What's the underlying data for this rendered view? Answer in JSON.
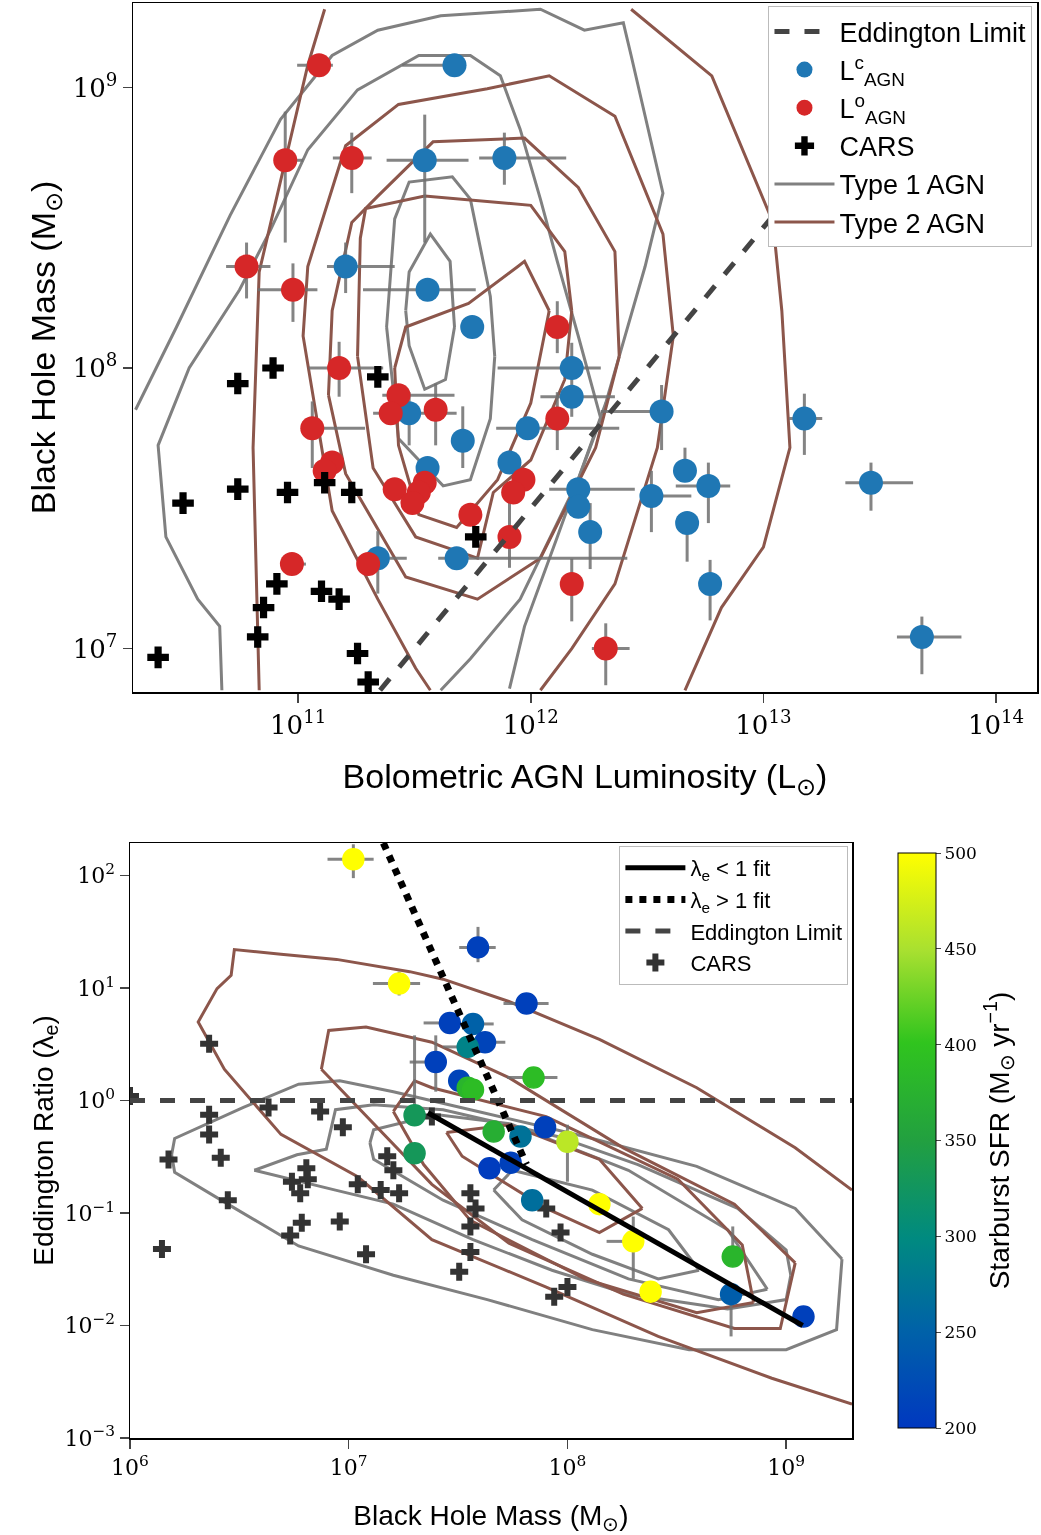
{
  "chart_data": [
    {
      "type": "scatter",
      "xlabel": "Bolometric AGN Luminosity (L$_{⊙}$)",
      "ylabel": "Black Hole Mass (M$_{⊙}$)",
      "log": "xy",
      "grid": false,
      "legend": "top right",
      "xlim": [
        19500000000.0,
        150000000000000.0
      ],
      "ylim": [
        7000000.0,
        2000000000.0
      ],
      "xticks": [
        {
          "value": 100000000000.0,
          "label": "10$^{11}$"
        },
        {
          "value": 1000000000000.0,
          "label": "10$^{12}$"
        },
        {
          "value": 10000000000000.0,
          "label": "10$^{13}$"
        },
        {
          "value": 100000000000000.0,
          "label": "10$^{14}$"
        }
      ],
      "yticks": [
        {
          "value": 10000000.0,
          "label": "10$^{7}$"
        },
        {
          "value": 100000000.0,
          "label": "10$^{8}$"
        },
        {
          "value": 1000000000.0,
          "label": "10$^{9}$"
        }
      ],
      "series": [
        {
          "name": "Eddington Limit",
          "type": "line",
          "color": "#444444",
          "line_style": "dashed",
          "marker": "none",
          "x": [
            225000000000.0,
            63000000000000.0
          ],
          "values": [
            7100000.0,
            2000000000.0
          ]
        },
        {
          "name": "L$^{c}$$_{AGN}$",
          "type": "scatter",
          "color": "#1f77b4",
          "marker": "circle",
          "x": [
            470000000000.0,
            350000000000.0,
            770000000000.0,
            160000000000.0,
            360000000000.0,
            560000000000.0,
            1500000000000.0,
            1500000000000.0,
            300000000000.0,
            3650000000000.0,
            360000000000.0,
            510000000000.0,
            970000000000.0,
            810000000000.0,
            1600000000000.0,
            1600000000000.0,
            1800000000000.0,
            3300000000000.0,
            4600000000000.0,
            5800000000000.0,
            4700000000000.0,
            15000000000000.0,
            29000000000000.0,
            5900000000000.0,
            48000000000000.0,
            480000000000.0,
            220000000000.0
          ],
          "values": [
            1200000000.0,
            550000000.0,
            560000000.0,
            230000000.0,
            190000000.0,
            140000000.0,
            100000000.0,
            79000000.0,
            69000000.0,
            70000000.0,
            44000000.0,
            55000000.0,
            61000000.0,
            46000000.0,
            37000000.0,
            32000000.0,
            26000000.0,
            35000000.0,
            43000000.0,
            38000000.0,
            28000000.0,
            66000000.0,
            39000000.0,
            17000000.0,
            11000000.0,
            21000000.0,
            21000000.0
          ],
          "xerrors": [
            [
              280000000000.0,
              470000000000.0
            ],
            [
              240000000000.0,
              540000000000.0
            ],
            [
              600000000000.0,
              1420000000000.0
            ],
            [
              133000000000.0,
              260000000000.0
            ],
            [
              190000000000.0,
              580000000000.0
            ],
            null,
            [
              720000000000.0,
              2000000000000.0
            ],
            [
              1100000000000.0,
              2300000000000.0
            ],
            [
              210000000000.0,
              480000000000.0
            ],
            [
              2000000000000.0,
              3650000000000.0
            ],
            null,
            null,
            [
              710000000000.0,
              2400000000000.0
            ],
            null,
            [
              1200000000000.0,
              2800000000000.0
            ],
            null,
            null,
            [
              3300000000000.0,
              4900000000000.0
            ],
            null,
            [
              4200000000000.0,
              7200000000000.0
            ],
            null,
            [
              12900000000000.0,
              17900000000000.0
            ],
            [
              22500000000000.0,
              44000000000000.0
            ],
            null,
            [
              37500000000000.0,
              71000000000000.0
            ],
            [
              400000000000.0,
              2600000000000.0
            ],
            [
              180000000000.0,
              293000000000.0
            ]
          ],
          "errors": [
            null,
            [
              280000000.0,
              800000000.0
            ],
            [
              450000000.0,
              690000000.0
            ],
            [
              185000000.0,
              280000000.0
            ],
            null,
            null,
            [
              100000000.0,
              123000000.0
            ],
            [
              67000000.0,
              93000000.0
            ],
            [
              53000000.0,
              82000000.0
            ],
            [
              51000000.0,
              87000000.0
            ],
            null,
            [
              44000000.0,
              73000000.0
            ],
            null,
            null,
            null,
            null,
            [
              19200000.0,
              33000000.0
            ],
            [
              26000000.0,
              43000000.0
            ],
            [
              43000000.0,
              52000000.0
            ],
            [
              28000000.0,
              46000000.0
            ],
            [
              20400000.0,
              28000000.0
            ],
            [
              49000000.0,
              81000000.0
            ],
            [
              31000000.0,
              46000000.0
            ],
            [
              12600000.0,
              20700000.0
            ],
            [
              8100000.0,
              13000000.0
            ],
            null,
            [
              15700000.0,
              26200000.0
            ]
          ]
        },
        {
          "name": "L$^{o}$$_{AGN}$",
          "type": "scatter",
          "color": "#d62728",
          "marker": "circle",
          "x": [
            123000000000.0,
            88000000000.0,
            170000000000.0,
            60000000000.0,
            95000000000.0,
            150000000000.0,
            115000000000.0,
            270000000000.0,
            250000000000.0,
            390000000000.0,
            140000000000.0,
            130000000000.0,
            260000000000.0,
            350000000000.0,
            330000000000.0,
            310000000000.0,
            550000000000.0,
            930000000000.0,
            840000000000.0,
            810000000000.0,
            1300000000000.0,
            1300000000000.0,
            94000000000.0,
            1500000000000.0,
            2100000000000.0,
            200000000000.0
          ],
          "values": [
            1200000000.0,
            550000000.0,
            560000000.0,
            230000000.0,
            190000000.0,
            100000000.0,
            61000000.0,
            80000000.0,
            69000000.0,
            71000000.0,
            46000000.0,
            43000000.0,
            37000000.0,
            39000000.0,
            36000000.0,
            33000000.0,
            30000000.0,
            40000000.0,
            36000000.0,
            25000000.0,
            140000000.0,
            66000000.0,
            20000000.0,
            17000000.0,
            10000000.0,
            20000000.0
          ],
          "xerrors": [
            [
              99000000000.0,
              141000000000.0
            ],
            [
              79000000000.0,
              105000000000.0
            ],
            [
              141000000000.0,
              207000000000.0
            ],
            [
              49000000000.0,
              76000000000.0
            ],
            [
              67000000000.0,
              121000000000.0
            ],
            [
              111000000000.0,
              232000000000.0
            ],
            [
              115000000000.0,
              194000000000.0
            ],
            [
              230000000000.0,
              470000000000.0
            ],
            null,
            null,
            null,
            null,
            null,
            null,
            null,
            null,
            null,
            null,
            null,
            null,
            null,
            null,
            [
              85000000000.0,
              108000000000.0
            ],
            null,
            [
              1830000000000.0,
              2660000000000.0
            ],
            null
          ],
          "errors": [
            null,
            [
              280000000.0,
              820000000.0
            ],
            [
              420000000.0,
              690000000.0
            ],
            [
              177000000.0,
              280000000.0
            ],
            [
              146000000.0,
              236000000.0
            ],
            [
              79000000.0,
              124000000.0
            ],
            [
              44000000.0,
              76000000.0
            ],
            null,
            null,
            [
              53000000.0,
              88000000.0
            ],
            null,
            null,
            null,
            null,
            null,
            null,
            null,
            null,
            null,
            [
              19400000.0,
              34000000.0
            ],
            [
              113000000.0,
              173000000.0
            ],
            [
              51000000.0,
              82000000.0
            ],
            null,
            [
              12500000.0,
              20900000.0
            ],
            [
              7400000.0,
              12300000.0
            ],
            null
          ]
        },
        {
          "name": "CARS",
          "type": "scatter",
          "color": "#000000",
          "marker": "cross",
          "x": [
            78000000000.0,
            55000000000.0,
            220000000000.0,
            55000000000.0,
            32000000000.0,
            90000000000.0,
            130000000000.0,
            170000000000.0,
            580000000000.0,
            81000000000.0,
            126000000000.0,
            150000000000.0,
            71000000000.0,
            67000000000.0,
            25000000000.0,
            180000000000.0,
            200000000000.0
          ],
          "values": [
            100000000.0,
            88000000.0,
            93000000.0,
            37000000.0,
            33000000.0,
            36000000.0,
            39000000.0,
            36000000.0,
            25000000.0,
            17000000.0,
            16000000.0,
            15000000.0,
            14000000.0,
            11000000.0,
            9300000.0,
            9600000.0,
            7600000.0
          ]
        },
        {
          "name": "Type 1 AGN",
          "type": "line",
          "color": "#808080",
          "line_style": "solid",
          "marker": "none",
          "x": [
            20000000000.0,
            30000000000.0,
            51000000000.0,
            84000000000.0,
            140000000000.0,
            220000000000.0,
            410000000000.0,
            1100000000000.0,
            1700000000000.0,
            2500000000000.0,
            2700000000000.0,
            3700000000000.0,
            3100000000000.0,
            2100000000000.0,
            1300000000000.0,
            940000000000.0,
            810000000000.0
          ],
          "values": [
            71000000.0,
            140000000.0,
            350000000.0,
            770000000.0,
            1300000000.0,
            1600000000.0,
            1800000000.0,
            1900000000.0,
            1600000000.0,
            1700000000.0,
            1300000000.0,
            420000000.0,
            230000000.0,
            75000000.0,
            25000000.0,
            12000000.0,
            7200000.0
          ]
        },
        {
          "type": "line",
          "color": "#808080",
          "line_style": "solid",
          "marker": "none",
          "x": [
            47000000000.0,
            46000000000.0,
            37000000000.0,
            27000000000.0,
            25000000000.0,
            34000000000.0,
            56000000000.0,
            76000000000.0,
            110000000000.0,
            180000000000.0,
            330000000000.0,
            550000000000.0,
            740000000000.0,
            900000000000.0,
            1100000000000.0,
            1300000000000.0,
            1600000000000.0,
            2000000000000.0,
            1600000000000.0,
            900000000000.0,
            550000000000.0,
            410000000000.0
          ],
          "values": [
            7100000.0,
            12000000.0,
            15000000.0,
            25000000.0,
            53000000.0,
            100000000.0,
            190000000.0,
            310000000.0,
            600000000.0,
            980000000.0,
            1300000000.0,
            1300000000.0,
            1100000000.0,
            710000000.0,
            400000000.0,
            240000000.0,
            130000000.0,
            66000000.0,
            40000000.0,
            15000000.0,
            9200000.0,
            7100000.0
          ]
        },
        {
          "type": "line",
          "color": "#808080",
          "line_style": "solid",
          "marker": "none",
          "x": [
            240000000000.0,
            260000000000.0,
            300000000000.0,
            460000000000.0,
            550000000000.0,
            670000000000.0,
            700000000000.0,
            null,
            240000000000.0,
            270000000000.0,
            420000000000.0,
            550000000000.0,
            670000000000.0,
            700000000000.0
          ],
          "values": [
            140000000.0,
            340000000.0,
            460000000.0,
            480000000.0,
            400000000.0,
            180000000.0,
            110000000.0,
            null,
            140000000.0,
            56000000.0,
            38000000.0,
            40000000.0,
            66000000.0,
            110000000.0
          ]
        },
        {
          "type": "line",
          "color": "#808080",
          "line_style": "solid",
          "marker": "none",
          "x": [
            290000000000.0,
            300000000000.0,
            370000000000.0,
            450000000000.0,
            470000000000.0,
            null,
            290000000000.0,
            300000000000.0,
            350000000000.0,
            430000000000.0,
            470000000000.0
          ],
          "values": [
            160000000.0,
            220000000.0,
            300000000.0,
            240000000.0,
            140000000.0,
            null,
            160000000.0,
            120000000.0,
            84000000.0,
            91000000.0,
            140000000.0
          ]
        },
        {
          "name": "Type 2 AGN",
          "type": "line",
          "color": "#8c564b",
          "line_style": "solid",
          "marker": "none",
          "x": [
            135000000000.0,
            140000000000.0,
            170000000000.0,
            220000000000.0,
            380000000000.0,
            940000000000.0,
            1600000000000.0,
            2300000000000.0,
            2400000000000.0,
            null,
            135000000000.0,
            160000000000.0,
            290000000000.0,
            590000000000.0,
            1100000000000.0,
            1900000000000.0,
            2400000000000.0
          ],
          "values": [
            80000000.0,
            160000000.0,
            330000000.0,
            410000000.0,
            640000000.0,
            660000000.0,
            440000000.0,
            260000000.0,
            110000000.0,
            null,
            80000000.0,
            42000000.0,
            18000000.0,
            15000000.0,
            21000000.0,
            52000000.0,
            110000000.0
          ]
        },
        {
          "type": "line",
          "color": "#8c564b",
          "line_style": "solid",
          "marker": "none",
          "x": [
            130000000000.0,
            110000000000.0,
            68000000000.0,
            64000000000.0,
            68000000000.0,
            null,
            2700000000000.0,
            6000000000000.0,
            11000000000000.0,
            12000000000000.0,
            13000000000000.0,
            10000000000000.0,
            6600000000000.0,
            4600000000000.0
          ],
          "values": [
            1900000000.0,
            1200000000.0,
            220000000.0,
            52000000.0,
            7100000.0,
            null,
            1900000000.0,
            1100000000.0,
            330000000.0,
            160000000.0,
            52000000.0,
            23000000.0,
            14000000.0,
            7100000.0
          ]
        },
        {
          "type": "line",
          "color": "#8c564b",
          "line_style": "solid",
          "marker": "none",
          "x": [
            370000000000.0,
            320000000000.0,
            220000000000.0,
            140000000000.0,
            105000000000.0,
            110000000000.0,
            160000000000.0,
            270000000000.0,
            650000000000.0,
            1200000000000.0,
            2300000000000.0,
            3700000000000.0,
            4100000000000.0,
            3500000000000.0,
            2300000000000.0,
            1500000000000.0,
            1100000000000.0
          ],
          "values": [
            7100000.0,
            8500000.0,
            15000000.0,
            31000000.0,
            130000000.0,
            230000000.0,
            620000000.0,
            870000000.0,
            990000000.0,
            1100000000.0,
            790000000.0,
            300000000.0,
            130000000.0,
            52000000.0,
            17000000.0,
            10000000.0,
            7100000.0
          ]
        },
        {
          "type": "line",
          "color": "#8c564b",
          "line_style": "solid",
          "marker": "none",
          "x": [
            180000000000.0,
            185000000000.0,
            195000000000.0,
            350000000000.0,
            1000000000000.0,
            1400000000000.0,
            1500000000000.0,
            null,
            180000000000.0,
            210000000000.0,
            320000000000.0,
            590000000000.0,
            690000000000.0,
            1000000000000.0,
            1400000000000.0,
            1500000000000.0
          ],
          "values": [
            110000000.0,
            290000000.0,
            370000000.0,
            410000000.0,
            380000000.0,
            260000000.0,
            160000000.0,
            null,
            110000000.0,
            44000000.0,
            25000000.0,
            21000000.0,
            36000000.0,
            47000000.0,
            91000000.0,
            160000000.0
          ]
        },
        {
          "type": "line",
          "color": "#8c564b",
          "line_style": "solid",
          "marker": "none",
          "x": [
            260000000000.0,
            290000000000.0,
            540000000000.0,
            880000000000.0,
            940000000000.0,
            1200000000000.0,
            null,
            260000000000.0,
            270000000000.0,
            330000000000.0,
            480000000000.0,
            720000000000.0,
            1000000000000.0,
            1200000000000.0
          ],
          "values": [
            100000000.0,
            140000000.0,
            170000000.0,
            230000000.0,
            240000000.0,
            160000000.0,
            null,
            100000000.0,
            53000000.0,
            30000000.0,
            27000000.0,
            40000000.0,
            75000000.0,
            160000000.0
          ]
        }
      ]
    },
    {
      "type": "scatter",
      "xlabel": "Black Hole Mass (M$_{⊙}$)",
      "ylabel": "Eddington Ratio (λ$_{e}$)",
      "clabel": "Starburst SFR (M$_{⊙}$ yr$^{−1}$)",
      "log": "xy",
      "grid": false,
      "legend": "top right",
      "xlim": [
        1000000.0,
        2000000000.0
      ],
      "ylim": [
        0.001,
        195
      ],
      "xticks": [
        {
          "value": 1000000.0,
          "label": "10$^{6}$"
        },
        {
          "value": 10000000.0,
          "label": "10$^{7}$"
        },
        {
          "value": 100000000.0,
          "label": "10$^{8}$"
        },
        {
          "value": 1000000000.0,
          "label": "10$^{9}$"
        }
      ],
      "yticks": [
        {
          "value": 0.001,
          "label": "10$^{−3}$"
        },
        {
          "value": 0.01,
          "label": "10$^{−2}$"
        },
        {
          "value": 0.1,
          "label": "10$^{−1}$"
        },
        {
          "value": 1,
          "label": "10$^{0}$"
        },
        {
          "value": 10,
          "label": "10$^{1}$"
        },
        {
          "value": 100,
          "label": "10$^{2}$"
        }
      ],
      "clim": [
        200,
        500
      ],
      "cticks": [
        200,
        250,
        300,
        350,
        400,
        450,
        500
      ],
      "series": [
        {
          "name": "λ$_{e}$ < 1 fit",
          "type": "line",
          "color": "#000000",
          "line_style": "solid",
          "marker": "none",
          "x": [
            23000000.0,
            1190000000.0
          ],
          "values": [
            0.78,
            0.01
          ]
        },
        {
          "name": "λ$_{e}$ > 1 fit",
          "type": "line",
          "color": "#000000",
          "line_style": "dotted",
          "marker": "none",
          "x": [
            14400000.0,
            65000000.0
          ],
          "values": [
            195,
            0.27
          ]
        },
        {
          "name": "Eddington Limit",
          "type": "line",
          "color": "#444444",
          "line_style": "dashed",
          "marker": "none",
          "x": [
            1000000.0,
            2000000000.0
          ],
          "values": [
            1,
            1
          ]
        },
        {
          "name": "CARS",
          "type": "scatter",
          "color": "#333333",
          "marker": "cross",
          "x": [
            2300000.0,
            1000000.0,
            2300000.0,
            2300000.0,
            1500000.0,
            2600000.0,
            2800000.0,
            1400000.0,
            4300000.0,
            7400000.0,
            9400000.0,
            6400000.0,
            6500000.0,
            5500000.0,
            6000000.0,
            6100000.0,
            5400000.0,
            9100000.0,
            12000000.0,
            11000000.0,
            14000000.0,
            17000000.0,
            15000000.0,
            16000000.0,
            24000000.0,
            36000000.0,
            38000000.0,
            36000000.0,
            36000000.0,
            32000000.0,
            93000000.0,
            80000000.0,
            100000000.0,
            87000000.0
          ],
          "values": [
            3.2,
            1.1,
            0.75,
            0.5,
            0.3,
            0.31,
            0.13,
            0.048,
            0.87,
            0.8,
            0.58,
            0.25,
            0.2,
            0.19,
            0.15,
            0.082,
            0.063,
            0.084,
            0.043,
            0.18,
            0.16,
            0.15,
            0.32,
            0.24,
            0.72,
            0.15,
            0.11,
            0.076,
            0.045,
            0.03,
            0.067,
            0.11,
            0.022,
            0.018
          ]
        },
        {
          "type": "line",
          "color": "#808080",
          "line_style": "solid",
          "marker": "none",
          "x": [
            1550000.0,
            1600000.0,
            3300000.0,
            5900000.0,
            9100000.0,
            16000000.0,
            36000000.0,
            120000000.0,
            390000000.0,
            1100000000.0,
            1800000000.0,
            null,
            1550000.0,
            1600000.0,
            2800000.0,
            5900000.0,
            16000000.0,
            43000000.0,
            130000000.0,
            360000000.0,
            1000000000.0,
            1700000000.0,
            1800000000.0
          ],
          "values": [
            0.33,
            0.46,
            0.87,
            1.4,
            1.5,
            1.2,
            0.83,
            0.48,
            0.26,
            0.11,
            0.039,
            null,
            0.33,
            0.23,
            0.12,
            0.051,
            0.028,
            0.017,
            0.0092,
            0.0061,
            0.0061,
            0.0092,
            0.039
          ]
        },
        {
          "type": "line",
          "color": "#808080",
          "line_style": "solid",
          "marker": "none",
          "x": [
            3700000.0,
            5800000.0,
            7900000.0,
            8700000.0,
            13000000.0,
            27000000.0,
            90000000.0,
            210000000.0,
            600000000.0,
            1000000000.0,
            1050000000.0,
            null,
            3700000.0,
            8700000.0,
            16000000.0,
            37000000.0,
            85000000.0,
            190000000.0,
            540000000.0,
            1000000000.0,
            1050000000.0
          ],
          "values": [
            0.24,
            0.33,
            0.37,
            0.83,
            0.92,
            0.83,
            0.48,
            0.27,
            0.11,
            0.047,
            0.028,
            null,
            0.24,
            0.16,
            0.12,
            0.058,
            0.031,
            0.019,
            0.014,
            0.017,
            0.028
          ]
        },
        {
          "type": "line",
          "color": "#808080",
          "line_style": "solid",
          "marker": "none",
          "x": [
            12500000.0,
            13000000.0,
            25000000.0,
            55000000.0,
            190000000.0,
            540000000.0,
            820000000.0,
            null,
            12500000.0,
            13000000.0,
            27000000.0,
            69000000.0,
            190000000.0,
            490000000.0,
            820000000.0
          ],
          "values": [
            0.42,
            0.55,
            0.75,
            0.62,
            0.24,
            0.071,
            0.021,
            null,
            0.42,
            0.3,
            0.13,
            0.058,
            0.026,
            0.017,
            0.021
          ]
        },
        {
          "type": "line",
          "color": "#808080",
          "line_style": "solid",
          "marker": "none",
          "x": [
            46000000.0,
            56000000.0,
            130000000.0,
            290000000.0,
            400000000.0,
            null,
            46000000.0,
            62000000.0,
            130000000.0,
            260000000.0,
            400000000.0
          ],
          "values": [
            0.16,
            0.24,
            0.16,
            0.071,
            0.031,
            null,
            0.16,
            0.087,
            0.043,
            0.026,
            0.031
          ]
        },
        {
          "type": "line",
          "color": "#8c564b",
          "line_style": "solid",
          "marker": "none",
          "x": [
            2000000000.0,
            1100000000.0,
            390000000.0,
            140000000.0,
            54000000.0,
            27000000.0,
            19000000.0,
            8800000.0,
            4900000.0,
            3000000.0,
            2900000.0,
            2500000.0,
            2050000.0,
            2700000.0,
            4900000.0,
            11000000.0,
            24000000.0,
            80000000.0,
            260000000.0,
            860000000.0,
            2000000000.0
          ],
          "values": [
            0.16,
            0.38,
            1.3,
            3.5,
            7.6,
            12,
            14,
            18,
            20,
            22,
            13,
            9.9,
            5.0,
            1.9,
            0.5,
            0.21,
            0.058,
            0.022,
            0.008,
            0.0034,
            0.002
          ]
        },
        {
          "type": "line",
          "color": "#8c564b",
          "line_style": "solid",
          "marker": "none",
          "x": [
            7500000.0,
            8100000.0,
            12000000.0,
            24000000.0,
            54000000.0,
            180000000.0,
            580000000.0,
            1100000000.0,
            null,
            7500000.0,
            24000000.0,
            54000000.0,
            180000000.0,
            580000000.0,
            940000000.0,
            1100000000.0
          ],
          "values": [
            1.9,
            4.2,
            4.5,
            3.3,
            1.6,
            0.38,
            0.12,
            0.036,
            null,
            1.9,
            0.18,
            0.054,
            0.019,
            0.0094,
            0.0094,
            0.036
          ]
        },
        {
          "type": "line",
          "color": "#8c564b",
          "line_style": "solid",
          "marker": "none",
          "x": [
            16000000.0,
            20000000.0,
            24000000.0,
            80000000.0,
            320000000.0,
            630000000.0,
            710000000.0,
            null,
            16000000.0,
            22000000.0,
            36000000.0,
            120000000.0,
            390000000.0,
            710000000.0
          ],
          "values": [
            0.8,
            1.5,
            1.3,
            0.72,
            0.2,
            0.052,
            0.016,
            null,
            0.8,
            0.27,
            0.086,
            0.026,
            0.013,
            0.016
          ]
        },
        {
          "type": "line",
          "color": "#8c564b",
          "line_style": "solid",
          "marker": "none",
          "x": [
            28000000.0,
            54000000.0,
            140000000.0,
            220000000.0,
            null,
            28000000.0,
            33000000.0,
            80000000.0,
            140000000.0,
            220000000.0
          ],
          "values": [
            0.52,
            0.61,
            0.3,
            0.11,
            null,
            0.52,
            0.32,
            0.11,
            0.067,
            0.11
          ]
        },
        {
          "type": "scatter",
          "marker": "circle",
          "x": [
            10500000.0,
            17000000.0,
            39000000.0,
            65000000.0,
            29000000.0,
            37000000.0,
            42000000.0,
            35000000.0,
            25000000.0,
            32000000.0,
            35000000.0,
            37000000.0,
            70000000.0,
            20000000.0,
            20000000.0,
            46000000.0,
            61000000.0,
            79000000.0,
            100000000.0,
            44000000.0,
            55000000.0,
            69000000.0,
            140000000.0,
            200000000.0,
            570000000.0,
            240000000.0,
            560000000.0,
            1200000000.0
          ],
          "values": [
            140,
            11,
            23,
            7.3,
            4.9,
            4.8,
            3.3,
            3.0,
            2.2,
            1.5,
            1.3,
            1.25,
            1.6,
            0.74,
            0.34,
            0.53,
            0.48,
            0.58,
            0.43,
            0.25,
            0.28,
            0.13,
            0.12,
            0.056,
            0.041,
            0.02,
            0.019,
            0.012
          ],
          "cvalues": [
            500,
            500,
            210,
            210,
            210,
            250,
            215,
            290,
            210,
            215,
            380,
            390,
            390,
            330,
            330,
            370,
            270,
            210,
            460,
            205,
            210,
            265,
            500,
            500,
            380,
            500,
            245,
            210
          ],
          "colors": [
            "#ffff00",
            "#ffff00",
            "#0040bb",
            "#0040bb",
            "#0040bb",
            "#0061a8",
            "#0044b9",
            "#008288",
            "#0040bb",
            "#0044b9",
            "#2ab52c",
            "#2dbc25",
            "#2dbc25",
            "#159759",
            "#159759",
            "#27ae33",
            "#007298",
            "#0040bb",
            "#bbe725",
            "#003cbe",
            "#0040bb",
            "#006e9c",
            "#ffff00",
            "#ffff00",
            "#2ab52c",
            "#ffff00",
            "#005dab",
            "#0040bb"
          ],
          "xerrors": [
            [
              8000000.0,
              13000000.0
            ],
            [
              12900000.0,
              21200000.0
            ],
            [
              32000000.0,
              47000000.0
            ],
            [
              51000000.0,
              82000000.0
            ],
            [
              22000000.0,
              29000000.0
            ],
            [
              37000000.0,
              46000000.0
            ],
            [
              42000000.0,
              52000000.0
            ],
            [
              27000000.0,
              35000000.0
            ],
            [
              19000000.0,
              25000000.0
            ],
            null,
            null,
            null,
            [
              53000000.0,
              90000000.0
            ],
            null,
            null,
            null,
            null,
            null,
            null,
            null,
            null,
            null,
            null,
            [
              151000000.0,
              200000000.0
            ],
            null,
            null,
            null,
            null
          ],
          "errors": [
            [
              95,
              190
            ],
            [
              8.6,
              14
            ],
            [
              17,
              35
            ],
            null,
            null,
            null,
            null,
            null,
            [
              1.2,
              3.8
            ],
            null,
            null,
            null,
            null,
            [
              0.74,
              3.8
            ],
            null,
            null,
            null,
            null,
            [
              0.19,
              0.61
            ],
            null,
            null,
            null,
            null,
            [
              0.026,
              0.093
            ],
            [
              0.041,
              0.076
            ],
            null,
            [
              0.008,
              0.019
            ],
            null
          ]
        }
      ]
    }
  ]
}
